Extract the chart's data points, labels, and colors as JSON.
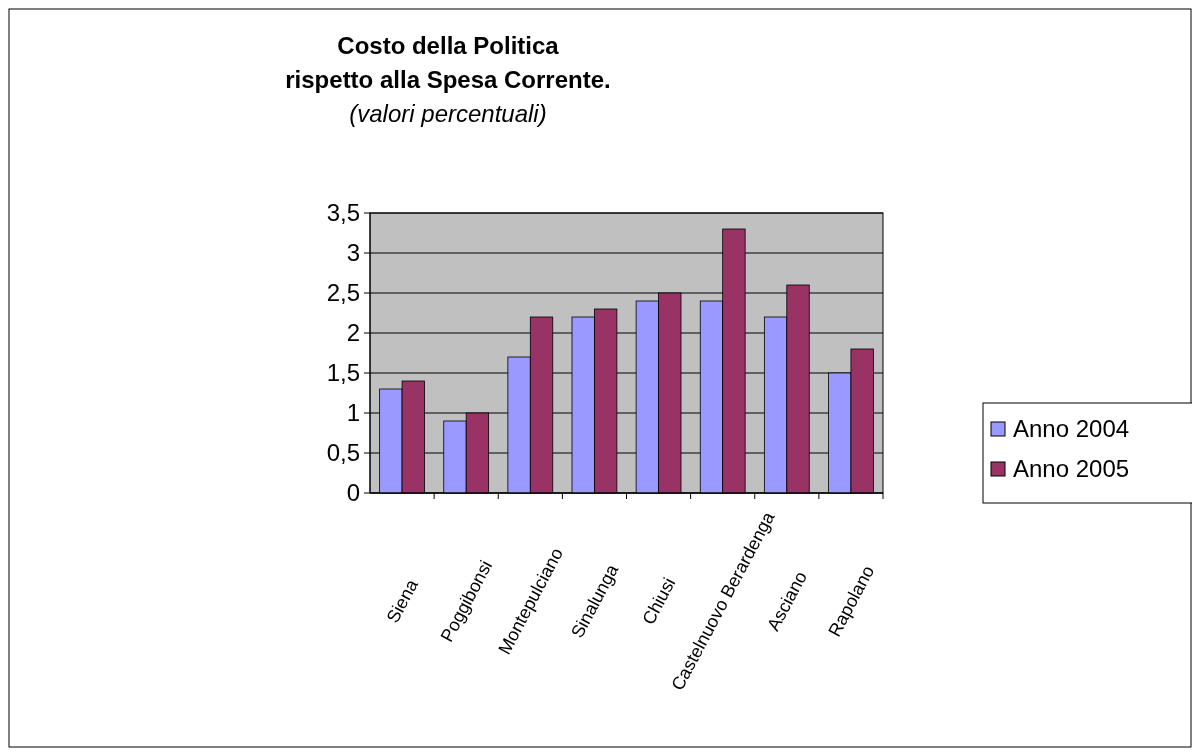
{
  "chart_data": {
    "type": "bar",
    "title": "Costo della Politica\nrispetto alla Spesa Corrente.",
    "subtitle": "(valori percentuali)",
    "categories": [
      "Siena",
      "Poggibonsi",
      "Montepulciano",
      "Sinalunga",
      "Chiusi",
      "Castelnuovo Berardenga",
      "Asciano",
      "Rapolano"
    ],
    "series": [
      {
        "name": "Anno 2004",
        "color": "#9999ff",
        "values": [
          1.3,
          0.9,
          1.7,
          2.2,
          2.4,
          2.4,
          2.2,
          1.5
        ]
      },
      {
        "name": "Anno 2005",
        "color": "#993366",
        "values": [
          1.4,
          1.0,
          2.2,
          2.3,
          2.5,
          3.3,
          2.6,
          1.8
        ]
      }
    ],
    "ylim": [
      0,
      3.5
    ],
    "yticks": [
      0,
      {
        "value": 0.5,
        "label": "0,5"
      },
      1,
      {
        "value": 1.5,
        "label": "1,5"
      },
      2,
      {
        "value": 2.5,
        "label": "2,5"
      },
      3,
      {
        "value": 3.5,
        "label": "3,5"
      }
    ],
    "grid": "y",
    "legend": "right"
  }
}
